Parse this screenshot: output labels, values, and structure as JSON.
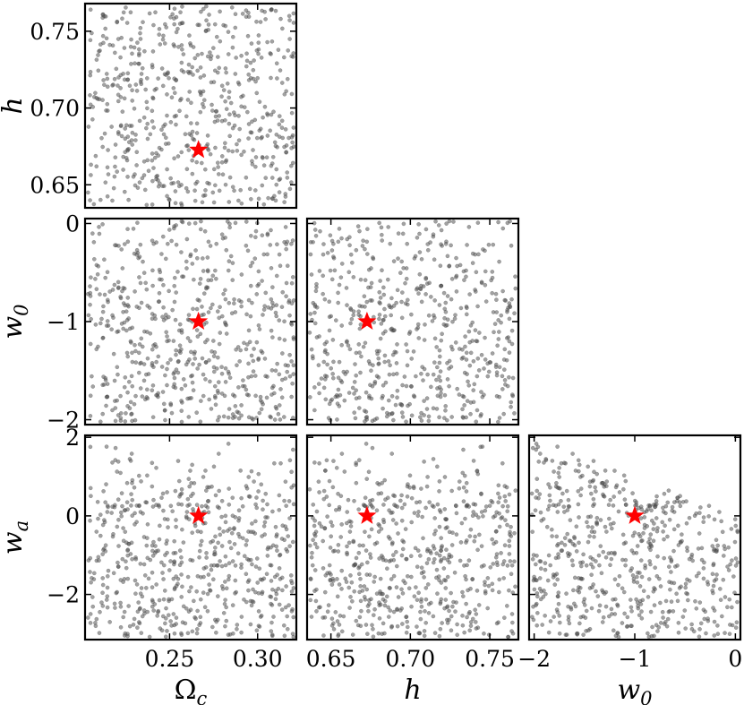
{
  "chart_data": {
    "type": "scatter",
    "layout": "corner",
    "parameters": [
      {
        "key": "Omega_c",
        "symbol": "Ω",
        "subscript": "c",
        "range": [
          0.202,
          0.322
        ],
        "ticks": [
          0.25,
          0.3
        ],
        "tick_labels": [
          "0.25",
          "0.30"
        ]
      },
      {
        "key": "h",
        "symbol": "h",
        "subscript": "",
        "range": [
          0.635,
          0.768
        ],
        "ticks": [
          0.65,
          0.7,
          0.75
        ],
        "tick_labels": [
          "0.65",
          "0.70",
          "0.75"
        ]
      },
      {
        "key": "w_0",
        "symbol": "w",
        "subscript": "0",
        "range": [
          -2.05,
          0.05
        ],
        "ticks": [
          -2,
          -1,
          0
        ],
        "tick_labels": [
          "−2",
          "−1",
          "0"
        ]
      },
      {
        "key": "w_a",
        "symbol": "w",
        "subscript": "a",
        "range": [
          -3.15,
          2.05
        ],
        "ticks": [
          -2,
          0,
          2
        ],
        "tick_labels": [
          "−2",
          "0",
          "2"
        ]
      }
    ],
    "panels": [
      {
        "x": "Omega_c",
        "y": "h"
      },
      {
        "x": "Omega_c",
        "y": "w_0"
      },
      {
        "x": "h",
        "y": "w_0"
      },
      {
        "x": "Omega_c",
        "y": "w_a"
      },
      {
        "x": "h",
        "y": "w_a"
      },
      {
        "x": "w_0",
        "y": "w_a"
      }
    ],
    "samples": {
      "count": 600,
      "distribution": "uniform within parameter ranges",
      "constraint": "w_0 + w_a <= 0",
      "color": "#555555",
      "opacity": 0.55
    },
    "fiducial": {
      "marker": "star",
      "color": "#ff0000",
      "values": {
        "Omega_c": 0.2664,
        "h": 0.6727,
        "w_0": -1,
        "w_a": 0
      }
    },
    "grid": false,
    "legend": "none"
  }
}
